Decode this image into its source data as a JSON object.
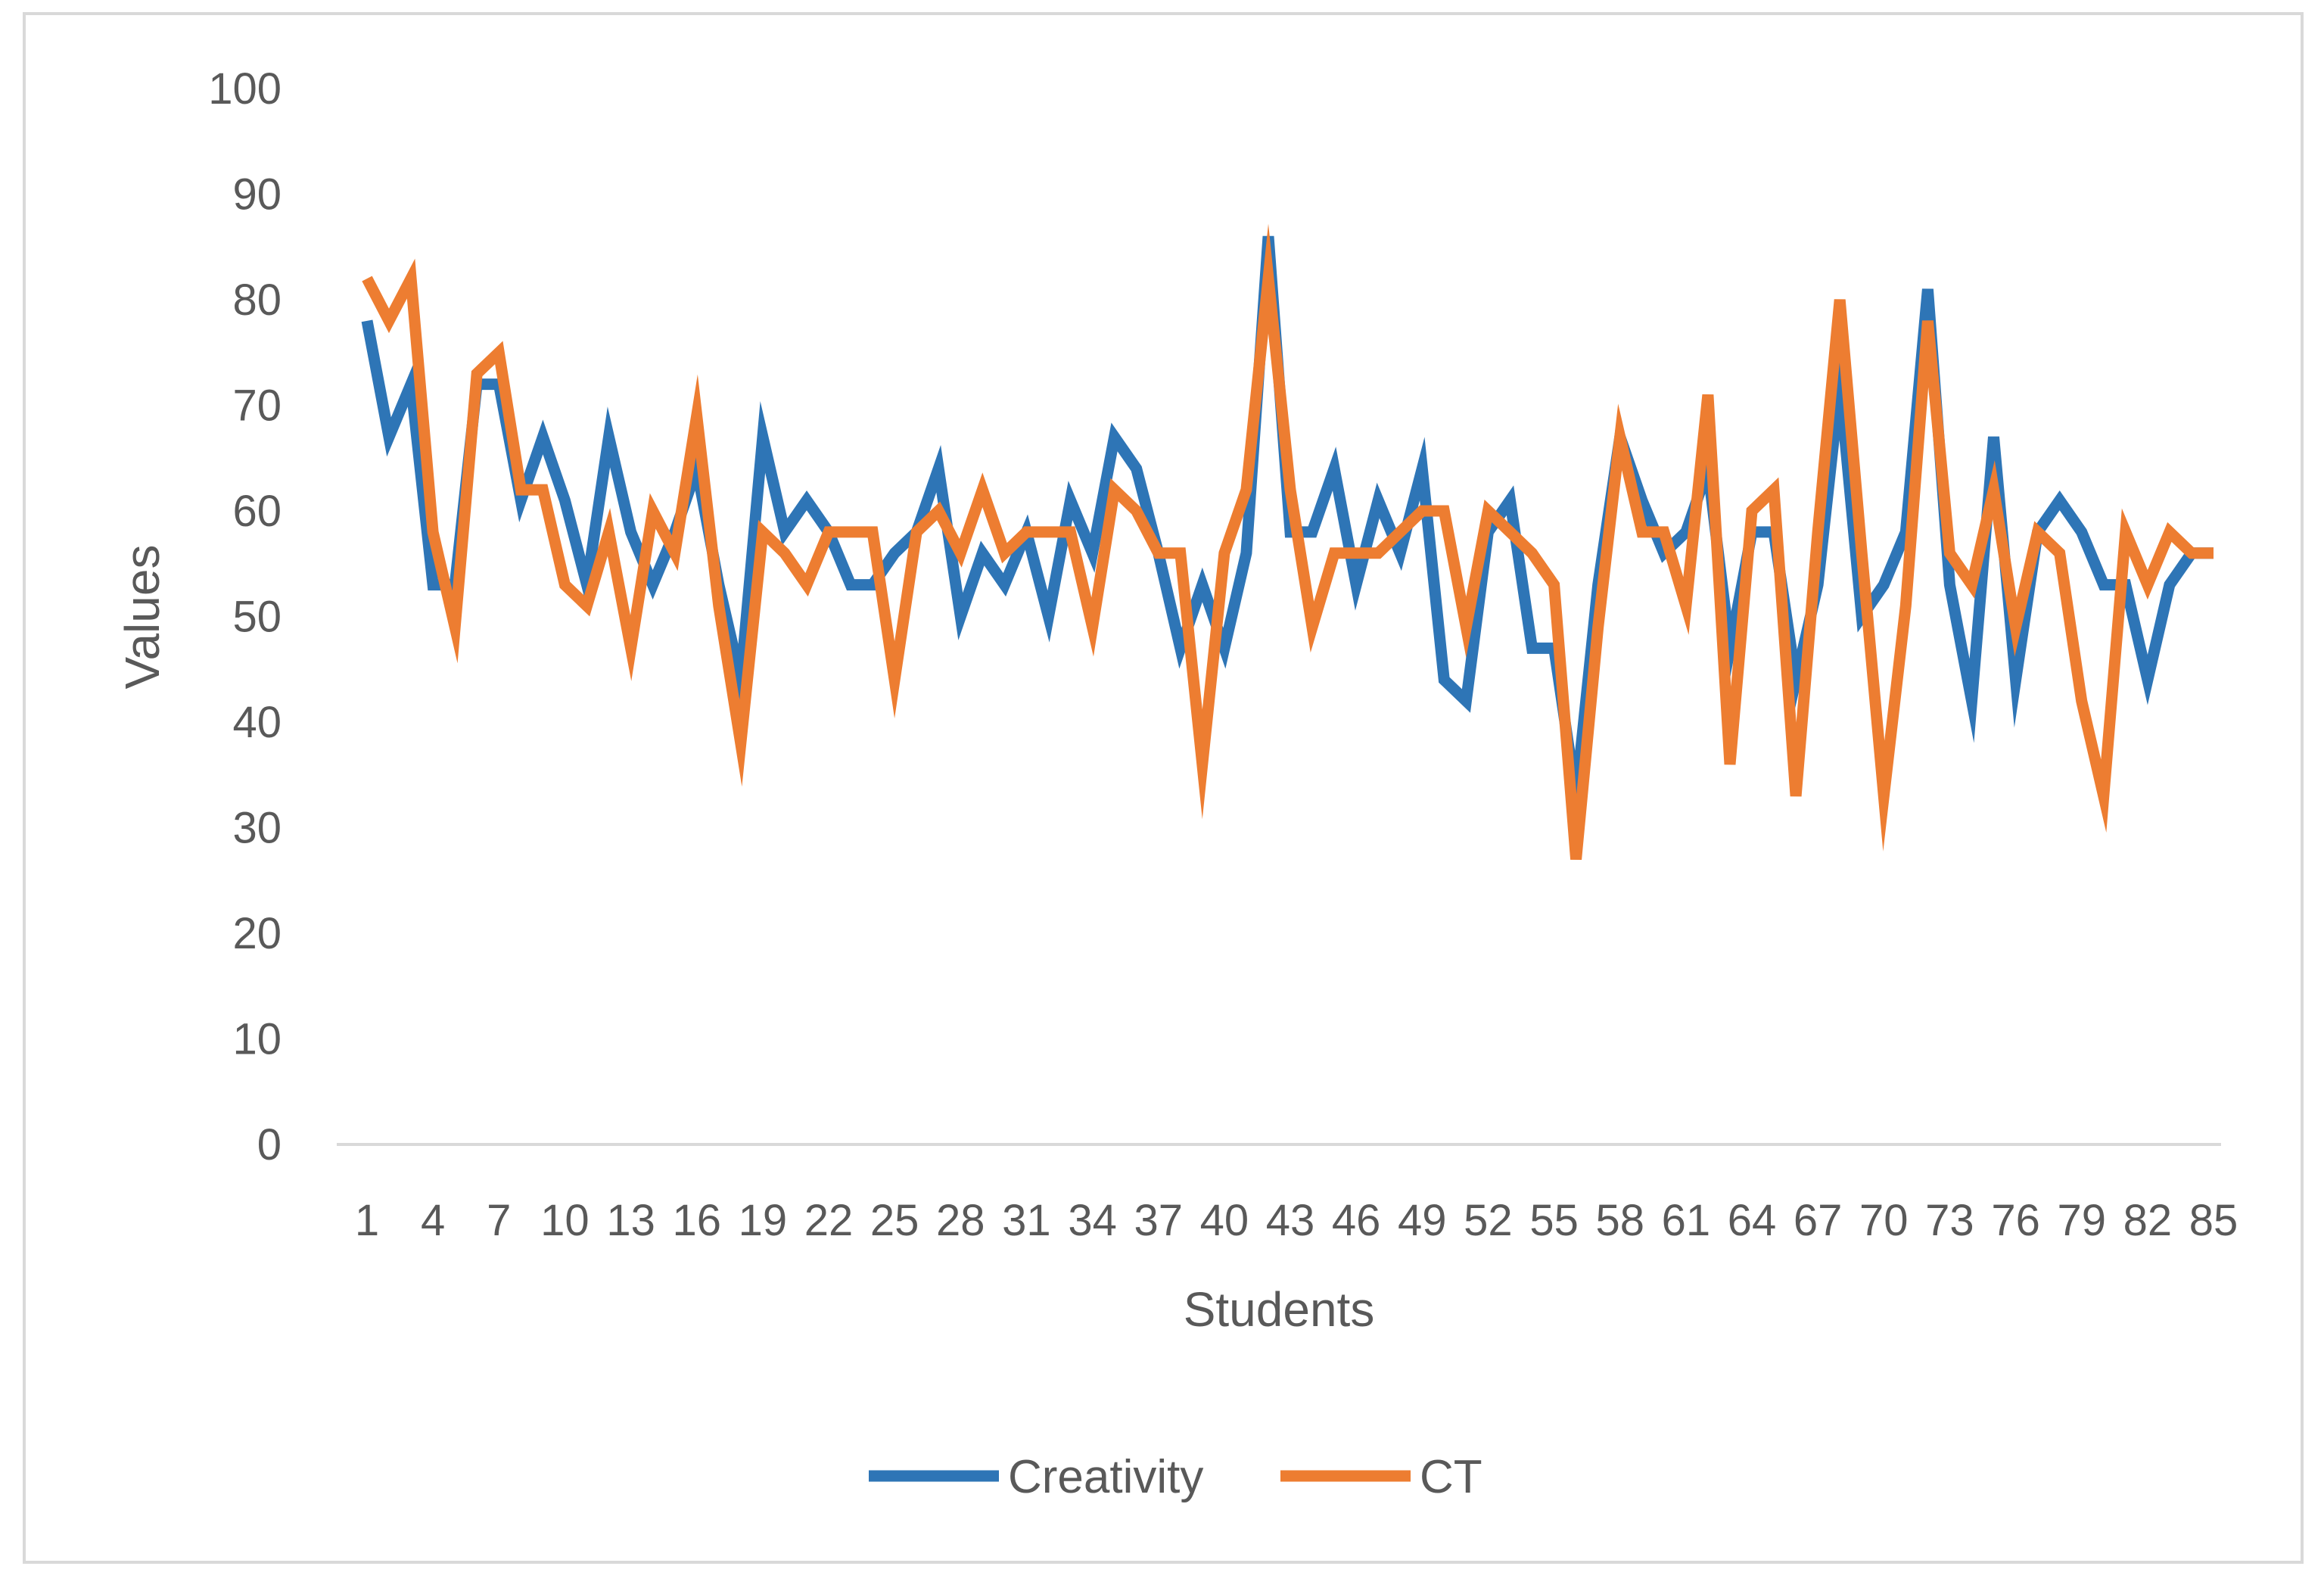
{
  "chart_data": {
    "type": "line",
    "title": "",
    "xlabel": "Students",
    "ylabel": "Values",
    "ylim": [
      0,
      100
    ],
    "yticks": [
      0,
      10,
      20,
      30,
      40,
      50,
      60,
      70,
      80,
      90,
      100
    ],
    "xtick_labels": [
      "1",
      "4",
      "7",
      "10",
      "13",
      "16",
      "19",
      "22",
      "25",
      "28",
      "31",
      "34",
      "37",
      "40",
      "43",
      "46",
      "49",
      "52",
      "55",
      "58",
      "61",
      "64",
      "67",
      "70",
      "73",
      "76",
      "79",
      "82",
      "85"
    ],
    "grid": false,
    "legend_position": "bottom",
    "x": [
      1,
      2,
      3,
      4,
      5,
      6,
      7,
      8,
      9,
      10,
      11,
      12,
      13,
      14,
      15,
      16,
      17,
      18,
      19,
      20,
      21,
      22,
      23,
      24,
      25,
      26,
      27,
      28,
      29,
      30,
      31,
      32,
      33,
      34,
      35,
      36,
      37,
      38,
      39,
      40,
      41,
      42,
      43,
      44,
      45,
      46,
      47,
      48,
      49,
      50,
      51,
      52,
      53,
      54,
      55,
      56,
      57,
      58,
      59,
      60,
      61,
      62,
      63,
      64,
      65,
      66,
      67,
      68,
      69,
      70,
      71,
      72,
      73,
      74,
      75,
      76,
      77,
      78,
      79,
      80,
      81,
      82,
      83,
      84,
      85
    ],
    "series": [
      {
        "name": "Creativity",
        "color": "#2e75b6",
        "values": [
          78,
          67,
          72,
          53,
          53,
          72,
          72,
          61,
          67,
          61,
          53,
          67,
          58,
          53,
          58,
          64,
          53,
          44,
          67,
          58,
          61,
          58,
          53,
          53,
          56,
          58,
          64,
          50,
          56,
          53,
          58,
          50,
          61,
          56,
          67,
          64,
          56,
          47,
          53,
          47,
          56,
          86,
          58,
          58,
          64,
          53,
          61,
          56,
          64,
          44,
          42,
          58,
          61,
          47,
          47,
          33,
          53,
          67,
          61,
          56,
          58,
          64,
          47,
          58,
          58,
          44,
          53,
          72,
          50,
          53,
          58,
          81,
          53,
          42,
          67,
          44,
          58,
          61,
          58,
          53,
          53,
          44,
          53,
          56,
          56
        ]
      },
      {
        "name": "CT",
        "color": "#ed7d31",
        "values": [
          82,
          78,
          82,
          58,
          49,
          73,
          75,
          62,
          62,
          53,
          51,
          58,
          47,
          60,
          56,
          69,
          51,
          38,
          58,
          56,
          53,
          58,
          58,
          58,
          44,
          58,
          60,
          56,
          62,
          56,
          58,
          58,
          58,
          49,
          62,
          60,
          56,
          56,
          36,
          56,
          62,
          82,
          62,
          49,
          56,
          56,
          56,
          58,
          60,
          60,
          49,
          60,
          58,
          56,
          53,
          27,
          49,
          67,
          58,
          58,
          51,
          71,
          36,
          60,
          62,
          33,
          58,
          80,
          56,
          33,
          51,
          78,
          56,
          53,
          62,
          49,
          58,
          56,
          42,
          33,
          58,
          53,
          58,
          56,
          56
        ]
      }
    ]
  }
}
